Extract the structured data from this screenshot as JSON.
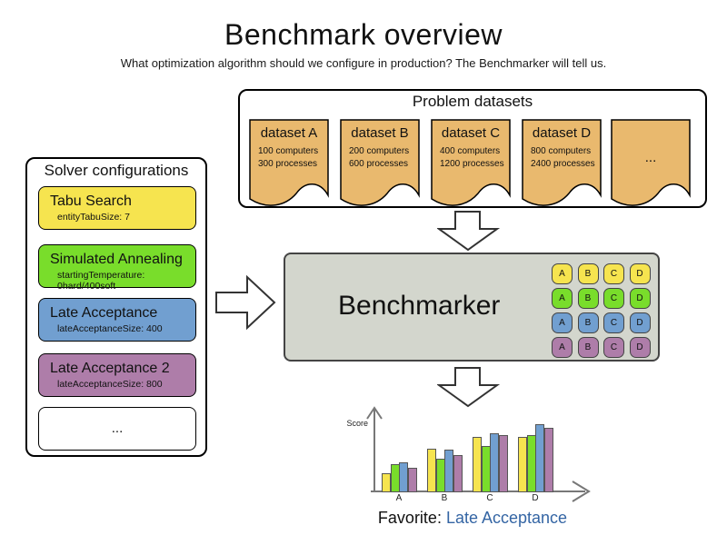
{
  "title": "Benchmark overview",
  "subtitle": "What optimization algorithm should we configure in production? The Benchmarker will tell us.",
  "colors": {
    "yellow": "#f6e44f",
    "green": "#79dd2b",
    "blue": "#719fd0",
    "purple": "#ae7da9",
    "orange": "#e9b96e",
    "benchmarker_bg": "#d3d6cd",
    "favorite_blue": "#3465a4"
  },
  "datasets_panel": {
    "title": "Problem datasets",
    "cards": [
      {
        "name": "dataset A",
        "line1": "100 computers",
        "line2": "300 processes"
      },
      {
        "name": "dataset B",
        "line1": "200 computers",
        "line2": "600 processes"
      },
      {
        "name": "dataset C",
        "line1": "400 computers",
        "line2": "1200 processes"
      },
      {
        "name": "dataset D",
        "line1": "800 computers",
        "line2": "2400 processes"
      }
    ],
    "more_label": "..."
  },
  "solvers_panel": {
    "title": "Solver configurations",
    "cards": [
      {
        "name": "Tabu Search",
        "param": "entityTabuSize: 7",
        "color": "yellow"
      },
      {
        "name": "Simulated Annealing",
        "param": "startingTemperature: 0hard/400soft",
        "color": "green"
      },
      {
        "name": "Late Acceptance",
        "param": "lateAcceptanceSize: 400",
        "color": "blue"
      },
      {
        "name": "Late Acceptance 2",
        "param": "lateAcceptanceSize: 800",
        "color": "purple"
      }
    ],
    "more_label": "..."
  },
  "benchmarker": {
    "label": "Benchmarker",
    "grid": {
      "columns": [
        "A",
        "B",
        "C",
        "D"
      ],
      "row_colors": [
        "yellow",
        "green",
        "blue",
        "purple"
      ]
    }
  },
  "chart_data": {
    "type": "bar",
    "title": "",
    "xlabel": "",
    "ylabel": "Score",
    "categories": [
      "A",
      "B",
      "C",
      "D"
    ],
    "series": [
      {
        "name": "Tabu Search",
        "color": "yellow",
        "values": [
          21,
          48,
          61,
          61
        ]
      },
      {
        "name": "Simulated Annealing",
        "color": "green",
        "values": [
          31,
          37,
          51,
          63
        ]
      },
      {
        "name": "Late Acceptance",
        "color": "blue",
        "values": [
          33,
          47,
          65,
          75
        ]
      },
      {
        "name": "Late Acceptance 2",
        "color": "purple",
        "values": [
          27,
          41,
          63,
          71
        ]
      }
    ],
    "ylim": [
      0,
      80
    ],
    "legend": "none",
    "grid": false,
    "note": "values are relative score bar heights"
  },
  "favorite": {
    "label": "Favorite:",
    "value": "Late Acceptance"
  }
}
